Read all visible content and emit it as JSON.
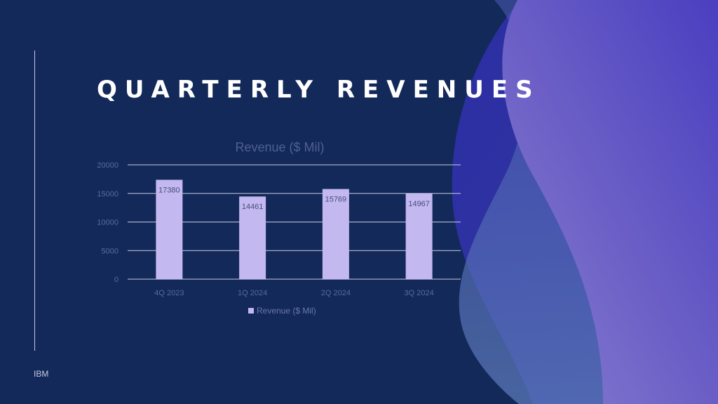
{
  "slide": {
    "title": "QUARTERLY REVENUES",
    "footer": "IBM"
  },
  "colors": {
    "background": "#13295a",
    "bar": "#c3b8f0",
    "gridline": "#c8cbe0",
    "wave_light": "#7a6cc6",
    "wave_dark": "#3b3fbf"
  },
  "chart_data": {
    "type": "bar",
    "title": "Revenue ($ Mil)",
    "categories": [
      "4Q 2023",
      "1Q 2024",
      "2Q 2024",
      "3Q 2024"
    ],
    "series": [
      {
        "name": "Revenue ($ Mil)",
        "values": [
          17380,
          14461,
          15769,
          14967
        ]
      }
    ],
    "ylim": [
      0,
      20000
    ],
    "yticks": [
      0,
      5000,
      10000,
      15000,
      20000
    ],
    "grid": true,
    "legend": "bottom",
    "data_labels": true
  }
}
